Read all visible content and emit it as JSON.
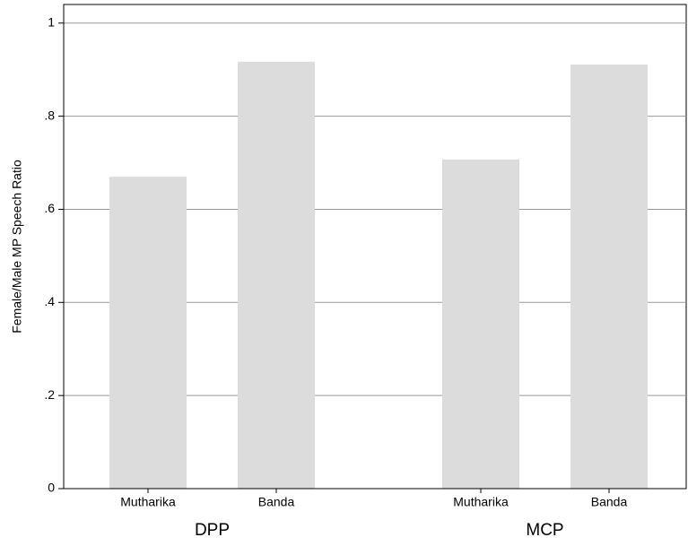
{
  "chart_data": {
    "type": "bar",
    "ylabel": "Female/Male MP Speech Ratio",
    "color": "#dcdcdd",
    "grid": true,
    "ylim": [
      0,
      1.04
    ],
    "yticks": [
      0,
      {
        "value": 0.2,
        "label": ".2"
      },
      {
        "value": 0.4,
        "label": ".4"
      },
      {
        "value": 0.6,
        "label": ".6"
      },
      {
        "value": 0.8,
        "label": ".8"
      },
      1
    ],
    "groups": [
      {
        "name": "DPP",
        "categories": [
          "Mutharika",
          "Banda"
        ],
        "values": [
          0.67,
          0.917
        ]
      },
      {
        "name": "MCP",
        "categories": [
          "Mutharika",
          "Banda"
        ],
        "values": [
          0.707,
          0.911
        ]
      }
    ]
  }
}
